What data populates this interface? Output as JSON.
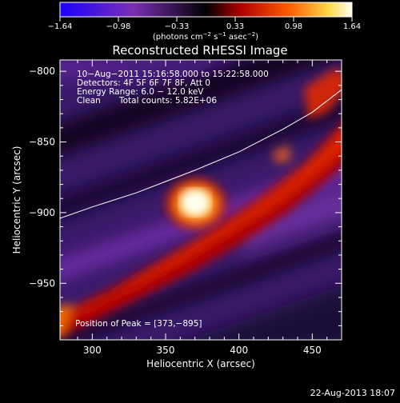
{
  "colorbar": {
    "ticks": [
      "−1.64",
      "−0.98",
      "−0.33",
      "0.33",
      "0.98",
      "1.64"
    ],
    "units_label": "(photons cm",
    "units_exp1": "−2",
    "units_mid1": " s",
    "units_exp2": "−1",
    "units_mid2": " asec",
    "units_exp3": "−2",
    "units_end": ")"
  },
  "colors": {
    "neg_low": "#1a00ff",
    "neg_mid": "#7b2fb4",
    "zero": "#000000",
    "pos_low": "#b00000",
    "pos_mid": "#ff5a00",
    "pos_high": "#ffd84a",
    "pos_max": "#fffff0"
  },
  "footer": {
    "timestamp": "22-Aug-2013 18:07"
  },
  "chart_data": {
    "type": "heatmap",
    "title": "Reconstructed RHESSI Image",
    "xlabel": "Heliocentric X (arcsec)",
    "ylabel": "Heliocentric Y (arcsec)",
    "xlim": [
      278,
      470
    ],
    "ylim": [
      -990,
      -792
    ],
    "x_ticks": [
      300,
      350,
      400,
      450
    ],
    "x_tick_labels": [
      "300",
      "350",
      "400",
      "450"
    ],
    "y_ticks": [
      -800,
      -850,
      -900,
      -950
    ],
    "y_tick_labels": [
      "−800",
      "−850",
      "−900",
      "−950"
    ],
    "value_range": [
      -1.64,
      1.64
    ],
    "annotations": {
      "time_range": "10−Aug−2011 15:16:58.000 to 15:22:58.000",
      "detectors": "Detectors: 4F 5F 6F 7F 8F, Att 0",
      "energy": "Energy Range: 6.0 − 12.0 keV",
      "method": "Clean",
      "counts": "Total counts: 5.82E+06",
      "peak": "Position of Peak = [373,−895]"
    },
    "peak": {
      "x": 373,
      "y": -895
    },
    "limb_curve": [
      [
        278,
        -904
      ],
      [
        300,
        -896
      ],
      [
        330,
        -886
      ],
      [
        350,
        -878
      ],
      [
        370,
        -870
      ],
      [
        400,
        -857
      ],
      [
        430,
        -841
      ],
      [
        450,
        -829
      ],
      [
        470,
        -813
      ]
    ]
  }
}
